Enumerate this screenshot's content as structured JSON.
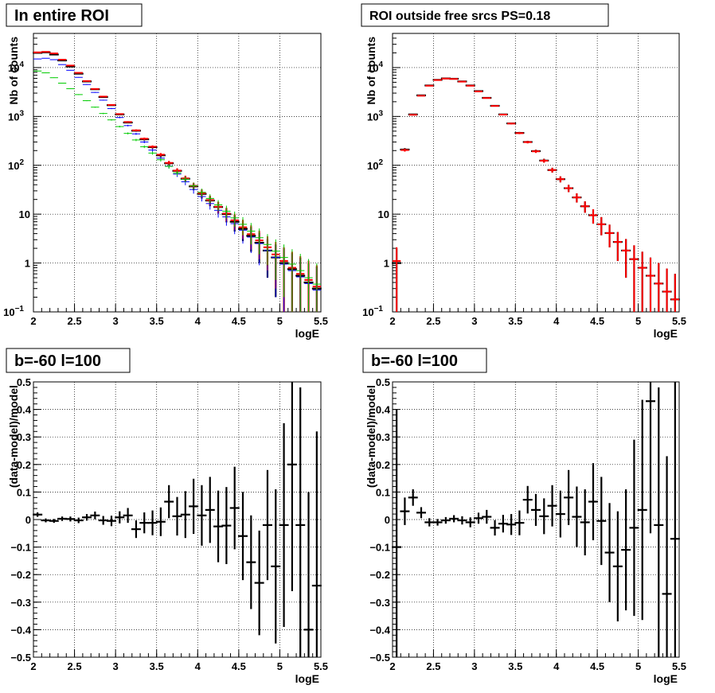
{
  "chart_data": [
    {
      "type": "line",
      "title": "In entire ROI",
      "xlabel": "logE",
      "ylabel": "Nb of counts",
      "xlim": [
        2,
        5.5
      ],
      "ylim": [
        0.1,
        50000
      ],
      "ylog": true,
      "grid": true,
      "x_ticks": [
        "2",
        "2.5",
        "3",
        "3.5",
        "4",
        "4.5",
        "5",
        "5.5"
      ],
      "y_ticks": [
        {
          "v": 0.1,
          "base": "10",
          "exp": "−1"
        },
        {
          "v": 1,
          "label": "1"
        },
        {
          "v": 10,
          "label": "10"
        },
        {
          "v": 100,
          "base": "10",
          "exp": "2"
        },
        {
          "v": 1000,
          "base": "10",
          "exp": "3"
        },
        {
          "v": 10000,
          "base": "10",
          "exp": "4"
        }
      ],
      "x": [
        2.05,
        2.15,
        2.25,
        2.35,
        2.45,
        2.55,
        2.65,
        2.75,
        2.85,
        2.95,
        3.05,
        3.15,
        3.25,
        3.35,
        3.45,
        3.55,
        3.65,
        3.75,
        3.85,
        3.95,
        4.05,
        4.15,
        4.25,
        4.35,
        4.45,
        4.55,
        4.65,
        4.75,
        4.85,
        4.95,
        5.05,
        5.15,
        5.25,
        5.35,
        5.45
      ],
      "series": [
        {
          "color": "#000000",
          "style": "data",
          "values": [
            20000,
            20500,
            18500,
            14000,
            10500,
            7500,
            5200,
            3600,
            2500,
            1700,
            1100,
            750,
            510,
            340,
            235,
            160,
            110,
            77,
            53,
            37,
            26,
            19,
            14,
            10,
            7,
            5,
            3.6,
            2.6,
            1.8,
            1.3,
            1,
            0.75,
            0.55,
            0.4,
            0.3
          ],
          "err": [
            140,
            143,
            136,
            118,
            102,
            87,
            72,
            60,
            50,
            41,
            33,
            27,
            23,
            18,
            15,
            13,
            10,
            8.8,
            7.3,
            6.1,
            5.1,
            4.4,
            3.7,
            3.2,
            2.6,
            2.2,
            1.9,
            1.6,
            1.3,
            1.1,
            1,
            0.87,
            0.74,
            0.63,
            0.55
          ]
        },
        {
          "color": "#ff0000",
          "style": "model",
          "values": [
            20500,
            21000,
            19500,
            14500,
            11000,
            7800,
            5300,
            3650,
            2550,
            1720,
            1120,
            770,
            520,
            350,
            240,
            165,
            112,
            78,
            54,
            38,
            27,
            19.5,
            14.2,
            10.3,
            7.5,
            5.4,
            3.9,
            2.9,
            2.1,
            1.5,
            1.1,
            0.8,
            0.6,
            0.45,
            0.33
          ],
          "err": [
            143,
            145,
            140,
            120,
            105,
            88,
            73,
            60,
            50,
            41,
            33,
            28,
            23,
            19,
            15,
            13,
            11,
            9,
            7.3,
            6.2,
            5.2,
            4.4,
            3.8,
            3.2,
            2.7,
            2.3,
            2,
            1.7,
            1.4,
            1.2,
            1,
            0.9,
            0.78,
            0.67,
            0.57
          ]
        },
        {
          "color": "#0000ff",
          "style": "step",
          "values": [
            15000,
            15500,
            14500,
            11500,
            8800,
            6300,
            4500,
            3100,
            2150,
            1450,
            950,
            650,
            440,
            300,
            205,
            140,
            96,
            66,
            46,
            32,
            23,
            16.5,
            12,
            8.8,
            6.4,
            4.7,
            3.4,
            2.5,
            1.8,
            1.3,
            0.95,
            0.7,
            0.52,
            0.38,
            0.28
          ],
          "err": [
            122,
            124,
            120,
            107,
            94,
            79,
            67,
            56,
            46,
            38,
            31,
            25,
            21,
            17,
            14,
            12,
            9.8,
            8.1,
            6.8,
            5.7,
            4.8,
            4.1,
            3.5,
            3,
            2.5,
            2.2,
            1.8,
            1.6,
            1.3,
            1.1,
            0.97,
            0.84,
            0.72,
            0.62,
            0.53
          ]
        },
        {
          "color": "#00cc00",
          "style": "step",
          "values": [
            8500,
            7800,
            6200,
            4800,
            3700,
            2800,
            2100,
            1550,
            1150,
            850,
            620,
            450,
            330,
            240,
            178,
            130,
            95,
            70,
            52,
            38,
            28,
            21,
            15.5,
            11.5,
            8.4,
            6.2,
            4.5,
            3.3,
            2.4,
            1.75,
            1.3,
            0.95,
            0.7,
            0.5,
            0.37
          ],
          "err": [
            92,
            88,
            79,
            69,
            61,
            53,
            46,
            39,
            34,
            29,
            25,
            21,
            18,
            15,
            13,
            11,
            9.7,
            8.4,
            7.2,
            6.2,
            5.3,
            4.6,
            3.9,
            3.4,
            2.9,
            2.5,
            2.1,
            1.8,
            1.5,
            1.3,
            1.1,
            0.97,
            0.84,
            0.71,
            0.61
          ]
        }
      ]
    },
    {
      "type": "line",
      "title": "ROI outside free srcs PS=0.18",
      "xlabel": "logE",
      "ylabel": "Nb of counts",
      "xlim": [
        2,
        5.5
      ],
      "ylim": [
        0.1,
        50000
      ],
      "ylog": true,
      "grid": true,
      "x_ticks": [
        "2",
        "2.5",
        "3",
        "3.5",
        "4",
        "4.5",
        "5",
        "5.5"
      ],
      "y_ticks": [
        {
          "v": 0.1,
          "base": "10",
          "exp": "−1"
        },
        {
          "v": 1,
          "label": "1"
        },
        {
          "v": 10,
          "label": "10"
        },
        {
          "v": 100,
          "base": "10",
          "exp": "2"
        },
        {
          "v": 1000,
          "base": "10",
          "exp": "3"
        },
        {
          "v": 10000,
          "base": "10",
          "exp": "4"
        }
      ],
      "x": [
        2.05,
        2.15,
        2.25,
        2.35,
        2.45,
        2.55,
        2.65,
        2.75,
        2.85,
        2.95,
        3.05,
        3.15,
        3.25,
        3.35,
        3.45,
        3.55,
        3.65,
        3.75,
        3.85,
        3.95,
        4.05,
        4.15,
        4.25,
        4.35,
        4.45,
        4.55,
        4.65,
        4.75,
        4.85,
        4.95,
        5.05,
        5.15,
        5.25,
        5.35,
        5.45
      ],
      "series": [
        {
          "color": "#000000",
          "style": "data",
          "values": [
            1,
            210,
            1100,
            2700,
            4300,
            5600,
            6000,
            5900,
            5200,
            4300,
            3300,
            2400,
            1650,
            1100,
            720,
            460,
            300,
            195,
            125,
            80,
            52,
            34,
            22,
            14.5,
            9.5,
            6.2,
            4.1,
            2.7,
            1.8,
            1.2,
            0.8,
            0.55,
            0.38,
            0.26,
            0.18
          ],
          "err": [
            1,
            14.5,
            33,
            52,
            66,
            75,
            77,
            77,
            72,
            66,
            57,
            49,
            41,
            33,
            27,
            21,
            17,
            14,
            11,
            9,
            7.2,
            5.8,
            4.7,
            3.8,
            3.1,
            2.5,
            2,
            1.6,
            1.3,
            1.1,
            0.9,
            0.74,
            0.62,
            0.51,
            0.42
          ]
        },
        {
          "color": "#ff0000",
          "style": "model",
          "values": [
            1.1,
            205,
            1080,
            2650,
            4250,
            5550,
            5950,
            5850,
            5150,
            4250,
            3250,
            2380,
            1640,
            1090,
            715,
            455,
            298,
            193,
            124,
            80,
            52,
            34,
            22,
            14.5,
            9.5,
            6.2,
            4.1,
            2.7,
            1.8,
            1.2,
            0.8,
            0.55,
            0.38,
            0.26,
            0.18
          ],
          "err": [
            1,
            14.3,
            33,
            51,
            65,
            75,
            77,
            76,
            72,
            65,
            57,
            49,
            40,
            33,
            27,
            21,
            17,
            14,
            11,
            9,
            7.2,
            5.8,
            4.7,
            3.8,
            3.1,
            2.5,
            2,
            1.6,
            1.3,
            1.1,
            0.9,
            0.74,
            0.62,
            0.51,
            0.42
          ]
        }
      ]
    },
    {
      "type": "scatter",
      "title": "b=-60 l=100",
      "xlabel": "logE",
      "ylabel": "(data-model)/model",
      "xlim": [
        2,
        5.5
      ],
      "ylim": [
        -0.5,
        0.5
      ],
      "grid": true,
      "x_ticks": [
        "2",
        "2.5",
        "3",
        "3.5",
        "4",
        "4.5",
        "5",
        "5.5"
      ],
      "y_ticks": [
        "−0.5",
        "−0.4",
        "−0.3",
        "−0.2",
        "−0.1",
        "0",
        "0.1",
        "0.2",
        "0.3",
        "0.4",
        "0.5"
      ],
      "x": [
        2.05,
        2.15,
        2.25,
        2.35,
        2.45,
        2.55,
        2.65,
        2.75,
        2.85,
        2.95,
        3.05,
        3.15,
        3.25,
        3.35,
        3.45,
        3.55,
        3.65,
        3.75,
        3.85,
        3.95,
        4.05,
        4.15,
        4.25,
        4.35,
        4.45,
        4.55,
        4.65,
        4.75,
        4.85,
        4.95,
        5.05,
        5.15,
        5.25,
        5.35,
        5.45
      ],
      "series": [
        {
          "color": "#000000",
          "style": "data",
          "values": [
            0.018,
            -0.003,
            -0.005,
            0.003,
            0.002,
            -0.003,
            0.008,
            0.015,
            -0.003,
            -0.005,
            0.008,
            0.015,
            -0.035,
            -0.012,
            -0.012,
            -0.008,
            0.065,
            0.012,
            0.018,
            0.048,
            0.015,
            0.035,
            -0.025,
            -0.022,
            0.042,
            -0.06,
            -0.155,
            -0.23,
            -0.02,
            -0.17,
            -0.02,
            0.2,
            -0.02,
            -0.4,
            -0.24
          ],
          "err": [
            0.008,
            0.007,
            0.007,
            0.008,
            0.009,
            0.01,
            0.012,
            0.014,
            0.016,
            0.019,
            0.022,
            0.027,
            0.032,
            0.038,
            0.045,
            0.052,
            0.06,
            0.07,
            0.085,
            0.1,
            0.11,
            0.12,
            0.13,
            0.14,
            0.15,
            0.16,
            0.17,
            0.19,
            0.2,
            0.28,
            0.37,
            0.46,
            0.5,
            0.5,
            0.56
          ]
        }
      ]
    },
    {
      "type": "scatter",
      "title": "b=-60 l=100",
      "xlabel": "logE",
      "ylabel": "(data-model)/model",
      "xlim": [
        2,
        5.5
      ],
      "ylim": [
        -0.5,
        0.5
      ],
      "grid": true,
      "x_ticks": [
        "2",
        "2.5",
        "3",
        "3.5",
        "4",
        "4.5",
        "5",
        "5.5"
      ],
      "y_ticks": [
        "−0.5",
        "−0.4",
        "−0.3",
        "−0.2",
        "−0.1",
        "0",
        "0.1",
        "0.2",
        "0.3",
        "0.4",
        "0.5"
      ],
      "x": [
        2.05,
        2.15,
        2.25,
        2.35,
        2.45,
        2.55,
        2.65,
        2.75,
        2.85,
        2.95,
        3.05,
        3.15,
        3.25,
        3.35,
        3.45,
        3.55,
        3.65,
        3.75,
        3.85,
        3.95,
        4.05,
        4.15,
        4.25,
        4.35,
        4.45,
        4.55,
        4.65,
        4.75,
        4.85,
        4.95,
        5.05,
        5.15,
        5.25,
        5.35,
        5.45
      ],
      "series": [
        {
          "color": "#000000",
          "style": "data",
          "values": [
            -0.1,
            0.03,
            0.08,
            0.025,
            -0.01,
            -0.01,
            -0.003,
            0.003,
            -0.003,
            -0.01,
            0.005,
            0.01,
            -0.03,
            -0.015,
            -0.018,
            -0.012,
            0.072,
            0.035,
            0.012,
            0.05,
            0.02,
            0.08,
            0.01,
            -0.01,
            0.065,
            -0.005,
            -0.12,
            -0.17,
            -0.11,
            -0.03,
            0.035,
            0.43,
            -0.02,
            -0.27,
            -0.07
          ],
          "err": [
            0.5,
            0.05,
            0.03,
            0.02,
            0.015,
            0.012,
            0.012,
            0.013,
            0.015,
            0.018,
            0.02,
            0.025,
            0.028,
            0.032,
            0.038,
            0.045,
            0.05,
            0.058,
            0.065,
            0.075,
            0.085,
            0.1,
            0.11,
            0.12,
            0.14,
            0.16,
            0.18,
            0.2,
            0.22,
            0.32,
            0.4,
            0.48,
            0.5,
            0.5,
            0.6
          ]
        }
      ]
    }
  ]
}
